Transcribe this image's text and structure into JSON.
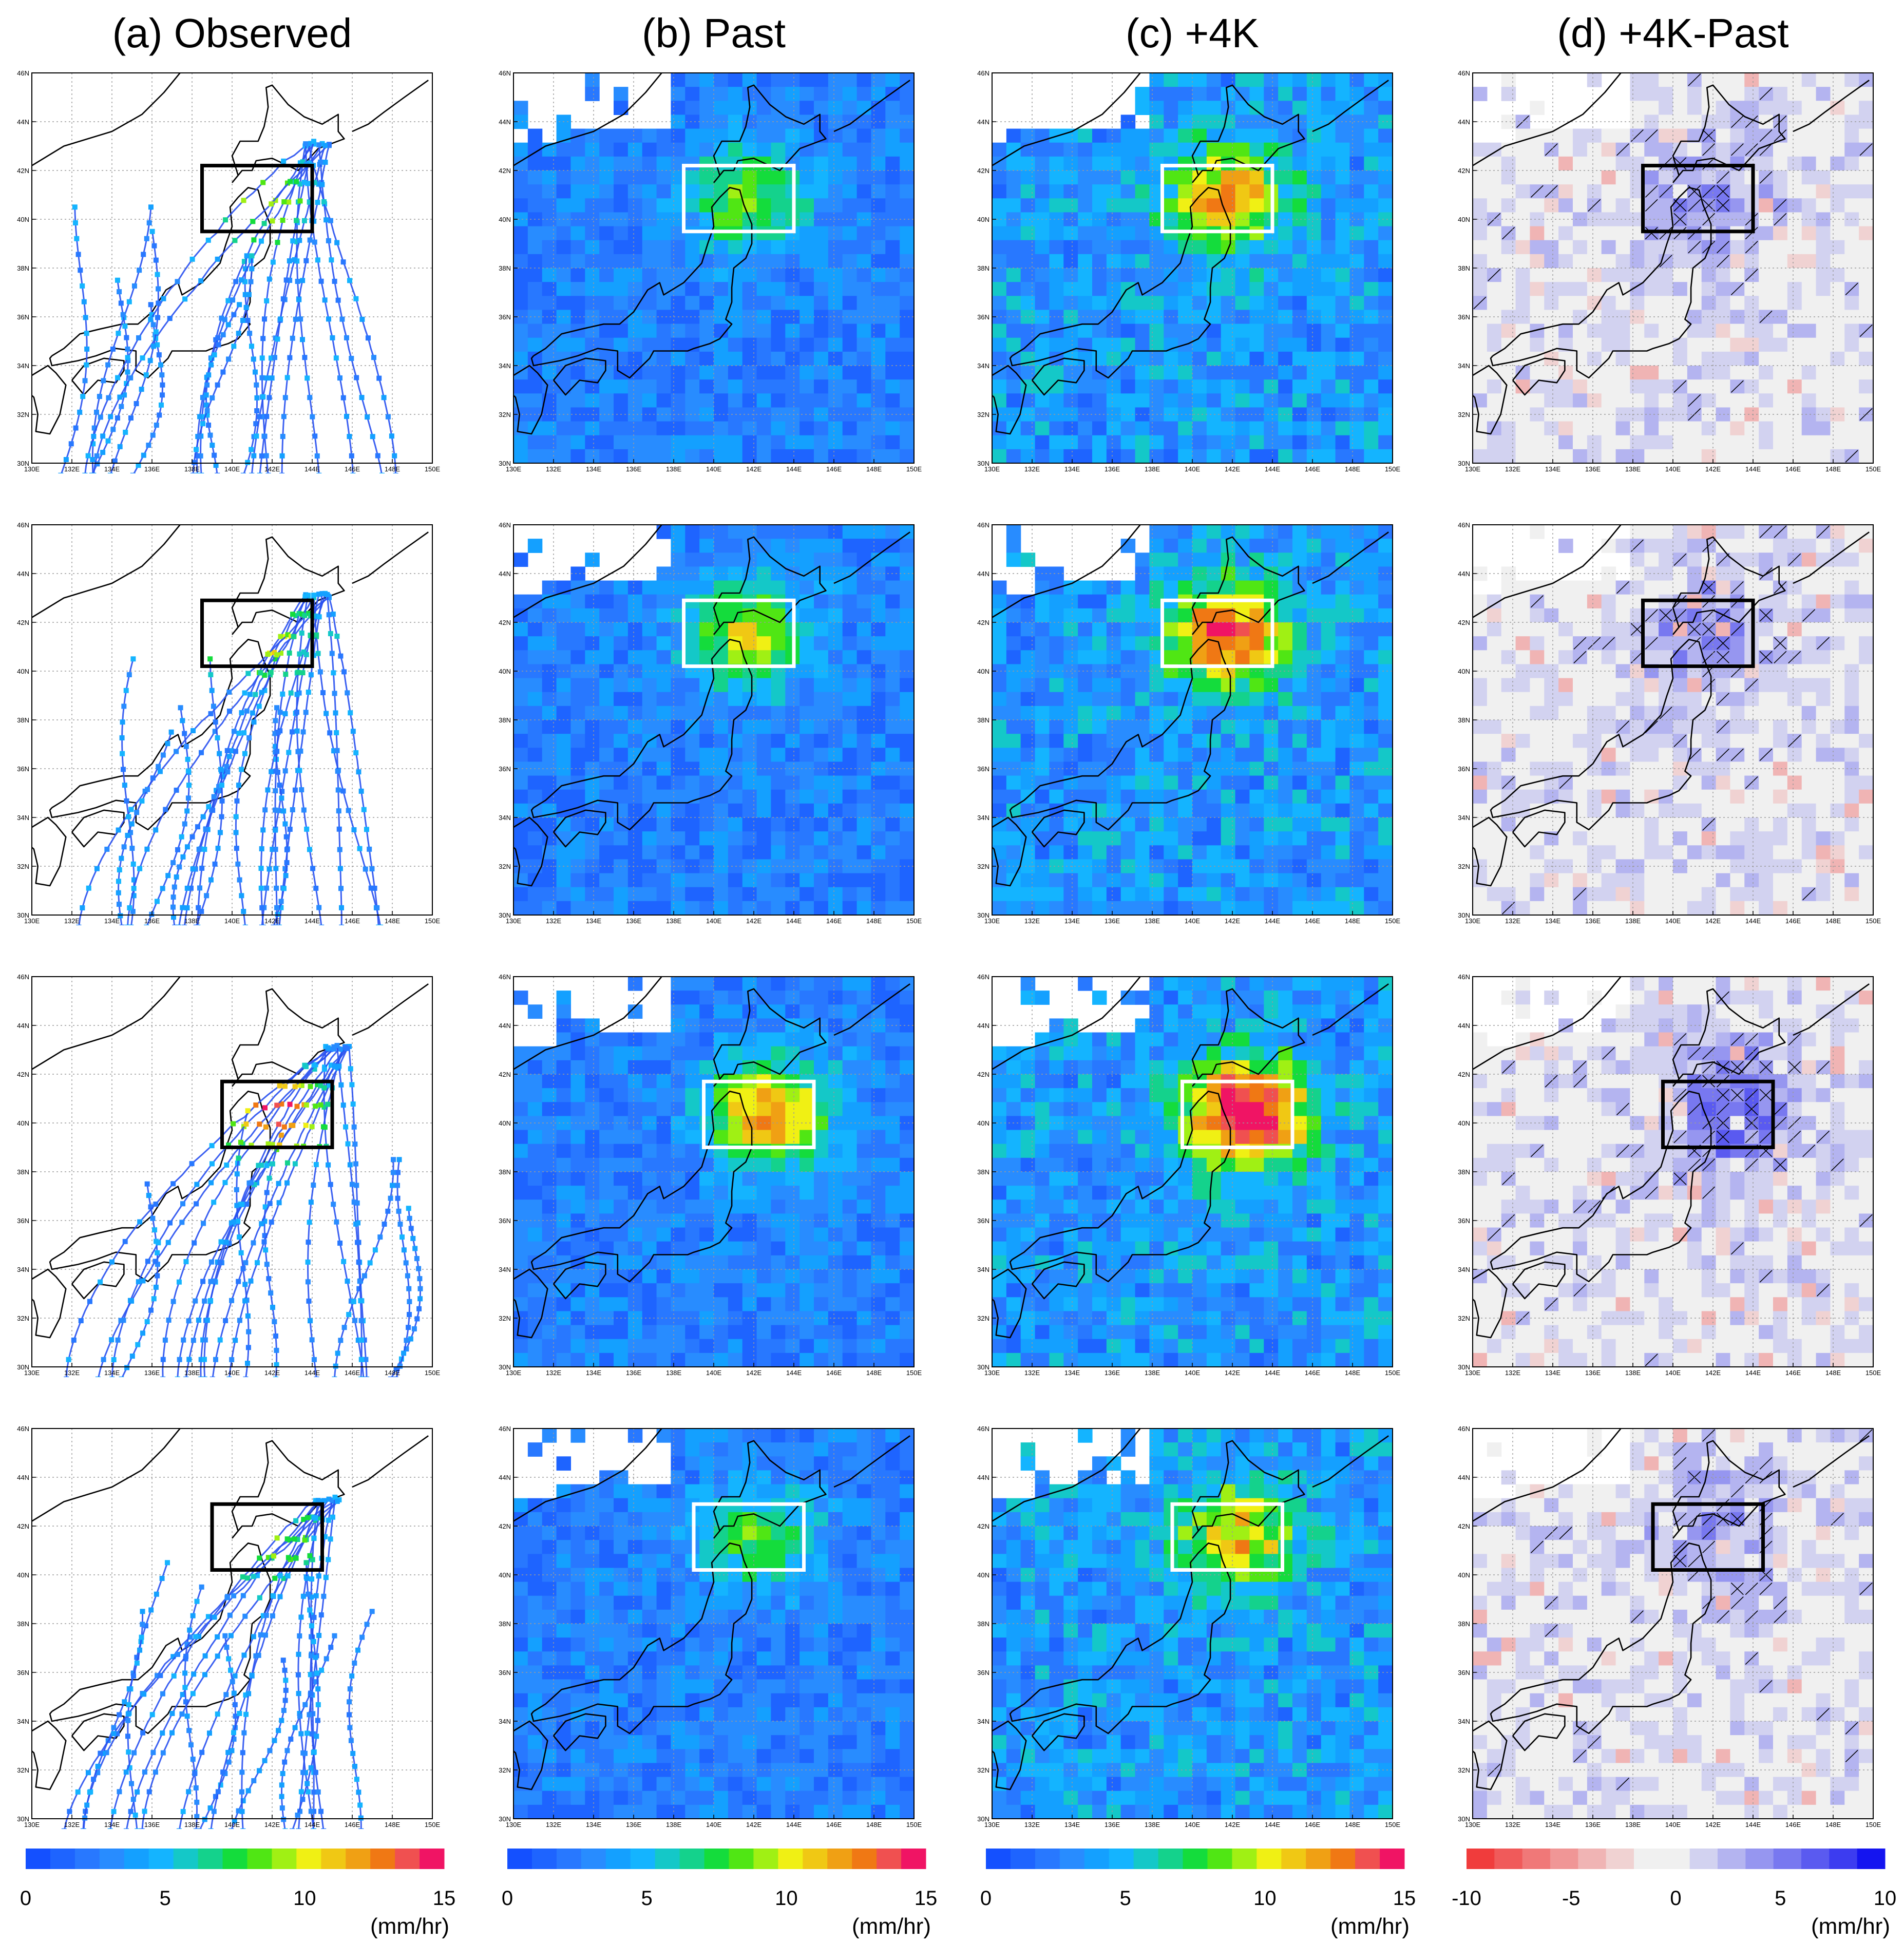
{
  "columns": [
    {
      "id": "a",
      "title": "(a) Observed",
      "type": "track",
      "box": "black",
      "cbar": {
        "labels": [
          "0",
          "5",
          "10",
          "15"
        ],
        "unit": "(mm/hr)",
        "palette": "rain"
      }
    },
    {
      "id": "b",
      "title": "(b) Past",
      "type": "field",
      "scale": 0.72,
      "box": "white",
      "cbar": {
        "labels": [
          "0",
          "5",
          "10",
          "15"
        ],
        "unit": "(mm/hr)",
        "palette": "rain"
      }
    },
    {
      "id": "c",
      "title": "(c) +4K",
      "type": "field",
      "scale": 1.0,
      "box": "white",
      "cbar": {
        "labels": [
          "0",
          "5",
          "10",
          "15"
        ],
        "unit": "(mm/hr)",
        "palette": "rain"
      }
    },
    {
      "id": "d",
      "title": "(d) +4K-Past",
      "type": "diff",
      "box": "black",
      "cbar": {
        "labels": [
          "-10",
          "-5",
          "0",
          "5",
          "10"
        ],
        "unit": "(mm/hr)",
        "palette": "diff"
      }
    }
  ],
  "map": {
    "lon_range": [
      130,
      150
    ],
    "lat_range": [
      30,
      46
    ],
    "lon_ticks": [
      "130E",
      "132E",
      "134E",
      "136E",
      "138E",
      "140E",
      "142E",
      "144E",
      "146E",
      "148E",
      "150E"
    ],
    "lat_ticks": [
      "30N",
      "32N",
      "34N",
      "36N",
      "38N",
      "40N",
      "42N",
      "44N",
      "46N"
    ],
    "gridlines": true
  },
  "rows": [
    {
      "box": {
        "lon": [
          138.5,
          144.0
        ],
        "lat": [
          39.5,
          42.2
        ]
      },
      "intensity": 0.62
    },
    {
      "box": {
        "lon": [
          138.5,
          144.0
        ],
        "lat": [
          40.2,
          42.9
        ]
      },
      "intensity": 0.75
    },
    {
      "box": {
        "lon": [
          139.5,
          145.0
        ],
        "lat": [
          39.0,
          41.7
        ]
      },
      "intensity": 1.0
    },
    {
      "box": {
        "lon": [
          139.0,
          144.5
        ],
        "lat": [
          40.2,
          42.9
        ]
      },
      "intensity": 0.55
    }
  ],
  "colors": {
    "rain": [
      "#1450ff",
      "#1e64ff",
      "#2878ff",
      "#288cff",
      "#14a0ff",
      "#14b4ff",
      "#14c8c8",
      "#14d28c",
      "#14dc3c",
      "#50e614",
      "#a0f014",
      "#f0f014",
      "#f0c814",
      "#f0a014",
      "#f07814",
      "#f05050",
      "#f01464"
    ],
    "diff": [
      "#f03c3c",
      "#f05a5a",
      "#f07878",
      "#f09696",
      "#f0b4b4",
      "#f0d2d2",
      "#f0f0f0",
      "#f0f0f0",
      "#d2d2f0",
      "#b4b4f0",
      "#9696f0",
      "#7878f0",
      "#5a5af0",
      "#3c3cf0",
      "#1414f0"
    ]
  }
}
